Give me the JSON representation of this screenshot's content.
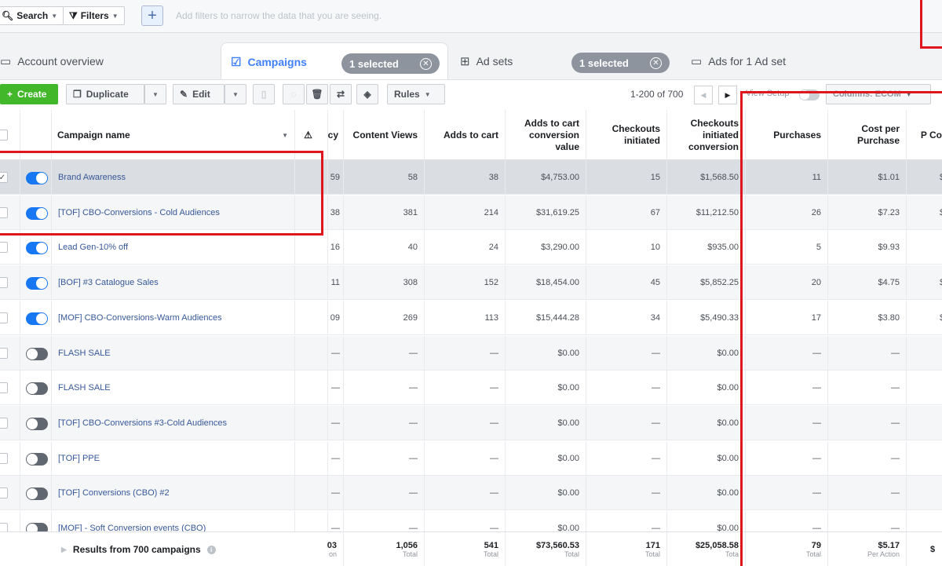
{
  "filterbar": {
    "search_label": "Search",
    "filters_label": "Filters",
    "hint": "Add filters to narrow the data that you are seeing.",
    "icons": {
      "search": "search-icon",
      "filter": "funnel-icon",
      "add": "plus-icon"
    }
  },
  "tabs": {
    "account": "Account overview",
    "campaigns": "Campaigns",
    "campaigns_selected": "1 selected",
    "adsets": "Ad sets",
    "adsets_selected": "1 selected",
    "ads": "Ads for 1 Ad set"
  },
  "toolbar": {
    "create": "Create",
    "duplicate": "Duplicate",
    "edit": "Edit",
    "rules": "Rules",
    "pager": "1-200 of 700",
    "view_setup": "View Setup",
    "columns": "Columns: ECOM"
  },
  "table": {
    "headers": {
      "name": "Campaign name",
      "partial": "cy",
      "content_views": "Content Views",
      "adds_to_cart": "Adds to cart",
      "atc_value": "Adds to cart conversion value",
      "checkouts": "Checkouts initiated",
      "checkouts_value": "Checkouts initiated conversion",
      "purchases": "Purchases",
      "cpp": "Cost per Purchase",
      "last": "P Co"
    },
    "rows": [
      {
        "name": "Brand Awareness",
        "on": true,
        "checked": true,
        "p": "59",
        "cv": "58",
        "atc": "38",
        "atcv": "$4,753.00",
        "ci": "15",
        "civ": "$1,568.50",
        "pur": "11",
        "cpp": "$1.01",
        "last": "$"
      },
      {
        "name": "[TOF] CBO-Conversions - Cold Audiences",
        "on": true,
        "checked": false,
        "p": "38",
        "cv": "381",
        "atc": "214",
        "atcv": "$31,619.25",
        "ci": "67",
        "civ": "$11,212.50",
        "pur": "26",
        "cpp": "$7.23",
        "last": "$"
      },
      {
        "name": "Lead Gen-10% off",
        "on": true,
        "checked": false,
        "p": "16",
        "cv": "40",
        "atc": "24",
        "atcv": "$3,290.00",
        "ci": "10",
        "civ": "$935.00",
        "pur": "5",
        "cpp": "$9.93",
        "last": ""
      },
      {
        "name": "[BOF] #3 Catalogue Sales",
        "on": true,
        "checked": false,
        "p": "11",
        "cv": "308",
        "atc": "152",
        "atcv": "$18,454.00",
        "ci": "45",
        "civ": "$5,852.25",
        "pur": "20",
        "cpp": "$4.75",
        "last": "$"
      },
      {
        "name": "[MOF] CBO-Conversions-Warm Audiences",
        "on": true,
        "checked": false,
        "p": "09",
        "cv": "269",
        "atc": "113",
        "atcv": "$15,444.28",
        "ci": "34",
        "civ": "$5,490.33",
        "pur": "17",
        "cpp": "$3.80",
        "last": "$"
      },
      {
        "name": "FLASH SALE",
        "on": false,
        "checked": false,
        "p": "—",
        "cv": "—",
        "atc": "—",
        "atcv": "$0.00",
        "ci": "—",
        "civ": "$0.00",
        "pur": "—",
        "cpp": "—",
        "last": ""
      },
      {
        "name": "FLASH SALE",
        "on": false,
        "checked": false,
        "p": "—",
        "cv": "—",
        "atc": "—",
        "atcv": "$0.00",
        "ci": "—",
        "civ": "$0.00",
        "pur": "—",
        "cpp": "—",
        "last": ""
      },
      {
        "name": "[TOF] CBO-Conversions #3-Cold Audiences",
        "on": false,
        "checked": false,
        "p": "—",
        "cv": "—",
        "atc": "—",
        "atcv": "$0.00",
        "ci": "—",
        "civ": "$0.00",
        "pur": "—",
        "cpp": "—",
        "last": ""
      },
      {
        "name": "[TOF] PPE",
        "on": false,
        "checked": false,
        "p": "—",
        "cv": "—",
        "atc": "—",
        "atcv": "$0.00",
        "ci": "—",
        "civ": "$0.00",
        "pur": "—",
        "cpp": "—",
        "last": ""
      },
      {
        "name": "[TOF] Conversions (CBO) #2",
        "on": false,
        "checked": false,
        "p": "—",
        "cv": "—",
        "atc": "—",
        "atcv": "$0.00",
        "ci": "—",
        "civ": "$0.00",
        "pur": "—",
        "cpp": "—",
        "last": ""
      },
      {
        "name": "[MOF] - Soft Conversion events (CBO)",
        "on": false,
        "checked": false,
        "p": "—",
        "cv": "—",
        "atc": "—",
        "atcv": "$0.00",
        "ci": "—",
        "civ": "$0.00",
        "pur": "—",
        "cpp": "—",
        "last": ""
      }
    ],
    "footer": {
      "results": "Results from 700 campaigns",
      "p": "03",
      "p_sub": "on",
      "cv": "1,056",
      "cv_sub": "Total",
      "atc": "541",
      "atc_sub": "Total",
      "atcv": "$73,560.53",
      "atcv_sub": "Total",
      "ci": "171",
      "ci_sub": "Total",
      "civ": "$25,058.58",
      "civ_sub": "Tota",
      "pur": "79",
      "pur_sub": "Total",
      "cpp": "$5.17",
      "cpp_sub": "Per Action",
      "last": "$"
    }
  },
  "colors": {
    "accent": "#1877f2",
    "create": "#42b72a",
    "highlight": "#e0161f"
  }
}
